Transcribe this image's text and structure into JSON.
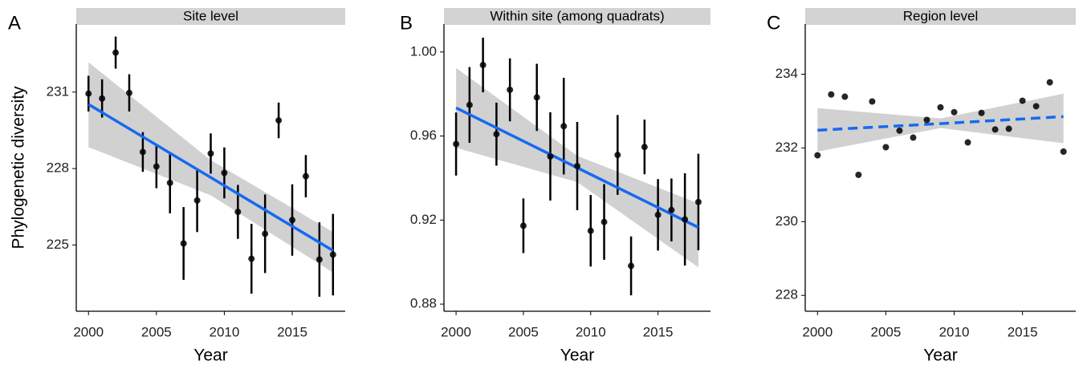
{
  "chart_data": [
    {
      "type": "scatter",
      "panel": "A",
      "title": "Site level",
      "xlabel": "Year",
      "ylabel": "Phylogenetic diversity",
      "x": [
        2000,
        2001,
        2002,
        2003,
        2004,
        2005,
        2006,
        2007,
        2008,
        2009,
        2010,
        2011,
        2012,
        2013,
        2014,
        2015,
        2016,
        2017,
        2018
      ],
      "values": [
        230.94,
        230.75,
        232.55,
        230.97,
        228.65,
        228.08,
        227.44,
        225.06,
        226.75,
        228.59,
        227.83,
        226.3,
        224.46,
        225.44,
        229.89,
        225.98,
        227.7,
        224.43,
        224.62
      ],
      "errors": [
        0.7,
        0.75,
        0.63,
        0.73,
        0.78,
        0.85,
        1.2,
        1.43,
        1.24,
        0.79,
        1.0,
        1.06,
        1.37,
        1.54,
        0.7,
        1.4,
        0.83,
        1.46,
        1.6
      ],
      "color": "#000000",
      "fit": {
        "x": [
          2000,
          2009,
          2018
        ],
        "values": [
          230.52,
          227.65,
          224.78
        ],
        "lower": [
          228.84,
          226.95,
          223.92
        ],
        "upper": [
          232.17,
          228.33,
          225.51
        ],
        "color": "#1769f0",
        "band_color": "#cccccc",
        "dashed": false
      },
      "xlim": [
        1999.1,
        2018.9
      ],
      "xticks": [
        2000,
        2005,
        2010,
        2015
      ],
      "ylim": [
        222.4,
        233.67
      ],
      "yticks": [
        225,
        228,
        231
      ]
    },
    {
      "type": "scatter",
      "panel": "B",
      "title": "Within site (among quadrats)",
      "xlabel": "Year",
      "x": [
        2000,
        2001,
        2002,
        2003,
        2004,
        2005,
        2006,
        2007,
        2008,
        2009,
        2010,
        2011,
        2012,
        2013,
        2014,
        2015,
        2016,
        2017,
        2018
      ],
      "values": [
        0.9562,
        0.9748,
        0.9938,
        0.9609,
        0.982,
        0.9173,
        0.9784,
        0.9503,
        0.9647,
        0.9457,
        0.9149,
        0.9191,
        0.951,
        0.8982,
        0.9548,
        0.9225,
        0.9248,
        0.9203,
        0.9286
      ],
      "errors": [
        0.015,
        0.018,
        0.013,
        0.015,
        0.015,
        0.013,
        0.016,
        0.021,
        0.023,
        0.021,
        0.017,
        0.018,
        0.019,
        0.014,
        0.013,
        0.017,
        0.015,
        0.022,
        0.023
      ],
      "color": "#000000",
      "fit": {
        "x": [
          2000,
          2009,
          2018
        ],
        "values": [
          0.9734,
          0.9449,
          0.9165
        ],
        "lower": [
          0.9544,
          0.9381,
          0.8975
        ],
        "upper": [
          0.9924,
          0.9506,
          0.9279
        ],
        "color": "#1769f0",
        "band_color": "#cccccc",
        "dashed": false
      },
      "xlim": [
        1999.1,
        2018.9
      ],
      "xticks": [
        2000,
        2005,
        2010,
        2015
      ],
      "ylim": [
        0.8766,
        1.0133
      ],
      "yticks": [
        {
          "value": 0.88,
          "label": "0.88"
        },
        {
          "value": 0.92,
          "label": "0.92"
        },
        {
          "value": 0.96,
          "label": "0.96"
        },
        {
          "value": 1.0,
          "label": "1.00"
        }
      ]
    },
    {
      "type": "scatter",
      "panel": "C",
      "title": "Region level",
      "xlabel": "Year",
      "x": [
        2000,
        2001,
        2002,
        2003,
        2004,
        2005,
        2006,
        2007,
        2008,
        2009,
        2010,
        2011,
        2012,
        2013,
        2014,
        2015,
        2016,
        2017,
        2018
      ],
      "values": [
        231.8,
        233.45,
        233.39,
        231.27,
        233.26,
        232.02,
        232.47,
        232.28,
        232.76,
        233.1,
        232.97,
        232.15,
        232.95,
        232.5,
        232.52,
        233.28,
        233.13,
        233.78,
        231.9
      ],
      "color": "#000000",
      "fit": {
        "x": [
          2000,
          2009,
          2018
        ],
        "values": [
          232.48,
          232.66,
          232.85
        ],
        "lower": [
          231.9,
          232.54,
          232.13
        ],
        "upper": [
          233.08,
          232.8,
          233.47
        ],
        "color": "#1769f0",
        "band_color": "#cccccc",
        "dashed": true
      },
      "xlim": [
        1999.1,
        2018.9
      ],
      "xticks": [
        2000,
        2005,
        2010,
        2015
      ],
      "ylim": [
        227.57,
        235.36
      ],
      "yticks": [
        228,
        230,
        232,
        234
      ]
    }
  ]
}
